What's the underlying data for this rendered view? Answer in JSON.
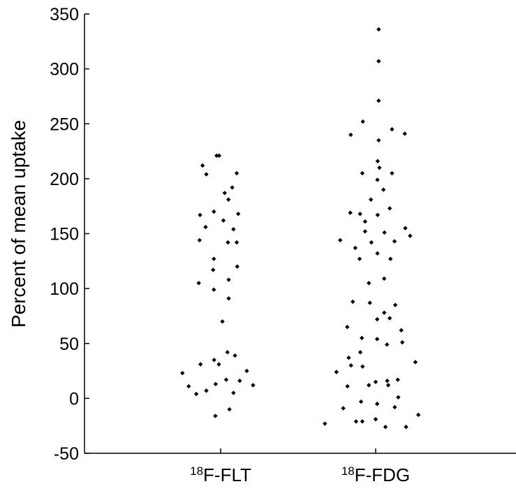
{
  "chart_data": {
    "type": "scatter",
    "title": "",
    "xlabel": "",
    "ylabel": "Percent of mean uptake",
    "ylim": [
      -50,
      350
    ],
    "yticks": [
      -50,
      0,
      50,
      100,
      150,
      200,
      250,
      300,
      350
    ],
    "grid": false,
    "categories": [
      {
        "sup": "18",
        "label": "F-FLT"
      },
      {
        "sup": "18",
        "label": "F-FDG"
      }
    ],
    "series": [
      {
        "category": 0,
        "points": [
          {
            "dx": -0.16,
            "y": 221
          },
          {
            "dx": -0.06,
            "y": 221
          },
          {
            "dx": -0.72,
            "y": 212
          },
          {
            "dx": -0.57,
            "y": 204
          },
          {
            "dx": 0.64,
            "y": 205
          },
          {
            "dx": 0.46,
            "y": 192
          },
          {
            "dx": 0.16,
            "y": 187
          },
          {
            "dx": 0.31,
            "y": 181
          },
          {
            "dx": -0.27,
            "y": 170
          },
          {
            "dx": -0.82,
            "y": 167
          },
          {
            "dx": 0.7,
            "y": 168
          },
          {
            "dx": 0.11,
            "y": 162
          },
          {
            "dx": -0.6,
            "y": 156
          },
          {
            "dx": 0.51,
            "y": 154
          },
          {
            "dx": -0.84,
            "y": 144
          },
          {
            "dx": 0.29,
            "y": 142
          },
          {
            "dx": 0.64,
            "y": 142
          },
          {
            "dx": -0.27,
            "y": 127
          },
          {
            "dx": 0.66,
            "y": 120
          },
          {
            "dx": -0.3,
            "y": 117
          },
          {
            "dx": 0.32,
            "y": 108
          },
          {
            "dx": -0.87,
            "y": 105
          },
          {
            "dx": -0.27,
            "y": 99
          },
          {
            "dx": 0.32,
            "y": 91
          },
          {
            "dx": 0.07,
            "y": 70
          },
          {
            "dx": 0.27,
            "y": 42
          },
          {
            "dx": 0.57,
            "y": 39
          },
          {
            "dx": -0.26,
            "y": 35
          },
          {
            "dx": -0.8,
            "y": 31
          },
          {
            "dx": -0.07,
            "y": 31
          },
          {
            "dx": 1.04,
            "y": 25
          },
          {
            "dx": -1.52,
            "y": 23
          },
          {
            "dx": 0.76,
            "y": 16
          },
          {
            "dx": 0.22,
            "y": 17
          },
          {
            "dx": -0.2,
            "y": 13
          },
          {
            "dx": -1.27,
            "y": 11
          },
          {
            "dx": 1.29,
            "y": 12
          },
          {
            "dx": -0.57,
            "y": 7
          },
          {
            "dx": 0.51,
            "y": 5
          },
          {
            "dx": -0.97,
            "y": 4
          },
          {
            "dx": 0.35,
            "y": -10
          },
          {
            "dx": -0.21,
            "y": -16
          }
        ]
      },
      {
        "category": 1,
        "points": [
          {
            "dx": 0.12,
            "y": 336
          },
          {
            "dx": 0.12,
            "y": 307
          },
          {
            "dx": 0.12,
            "y": 271
          },
          {
            "dx": -0.51,
            "y": 252
          },
          {
            "dx": 0.65,
            "y": 245
          },
          {
            "dx": -0.99,
            "y": 240
          },
          {
            "dx": 1.16,
            "y": 241
          },
          {
            "dx": 0.12,
            "y": 235
          },
          {
            "dx": 0.08,
            "y": 216
          },
          {
            "dx": 0.15,
            "y": 210
          },
          {
            "dx": -0.53,
            "y": 205
          },
          {
            "dx": 0.65,
            "y": 205
          },
          {
            "dx": 0.07,
            "y": 199
          },
          {
            "dx": 0.31,
            "y": 190
          },
          {
            "dx": -0.19,
            "y": 181
          },
          {
            "dx": 0.56,
            "y": 173
          },
          {
            "dx": -1.01,
            "y": 169
          },
          {
            "dx": -0.62,
            "y": 168
          },
          {
            "dx": 0.08,
            "y": 167
          },
          {
            "dx": -0.42,
            "y": 161
          },
          {
            "dx": 1.18,
            "y": 155
          },
          {
            "dx": -0.42,
            "y": 152
          },
          {
            "dx": 0.35,
            "y": 151
          },
          {
            "dx": 1.37,
            "y": 148
          },
          {
            "dx": -1.41,
            "y": 144
          },
          {
            "dx": -0.17,
            "y": 142
          },
          {
            "dx": 0.75,
            "y": 143
          },
          {
            "dx": -0.81,
            "y": 137
          },
          {
            "dx": 0.07,
            "y": 132
          },
          {
            "dx": -0.64,
            "y": 127
          },
          {
            "dx": 0.59,
            "y": 127
          },
          {
            "dx": 0.34,
            "y": 109
          },
          {
            "dx": -0.27,
            "y": 105
          },
          {
            "dx": -0.91,
            "y": 88
          },
          {
            "dx": -0.23,
            "y": 87
          },
          {
            "dx": 0.78,
            "y": 85
          },
          {
            "dx": 0.34,
            "y": 78
          },
          {
            "dx": 0.06,
            "y": 72
          },
          {
            "dx": 0.56,
            "y": 73
          },
          {
            "dx": -1.13,
            "y": 65
          },
          {
            "dx": 1.02,
            "y": 62
          },
          {
            "dx": -0.55,
            "y": 55
          },
          {
            "dx": 0.06,
            "y": 54
          },
          {
            "dx": 1.06,
            "y": 51
          },
          {
            "dx": 0.45,
            "y": 49
          },
          {
            "dx": -0.61,
            "y": 42
          },
          {
            "dx": -1.07,
            "y": 37
          },
          {
            "dx": 1.58,
            "y": 33
          },
          {
            "dx": -0.98,
            "y": 30
          },
          {
            "dx": -0.52,
            "y": 29
          },
          {
            "dx": -1.56,
            "y": 24
          },
          {
            "dx": 0.88,
            "y": 17
          },
          {
            "dx": 0.0,
            "y": 15
          },
          {
            "dx": 0.46,
            "y": 16
          },
          {
            "dx": -0.27,
            "y": 12
          },
          {
            "dx": -1.12,
            "y": 11
          },
          {
            "dx": 0.5,
            "y": 12
          },
          {
            "dx": 0.9,
            "y": 1
          },
          {
            "dx": -0.58,
            "y": -3
          },
          {
            "dx": 0.06,
            "y": -5
          },
          {
            "dx": 0.76,
            "y": -8
          },
          {
            "dx": -1.29,
            "y": -9
          },
          {
            "dx": 1.7,
            "y": -15
          },
          {
            "dx": -0.78,
            "y": -21
          },
          {
            "dx": -0.53,
            "y": -21
          },
          {
            "dx": 0.0,
            "y": -19
          },
          {
            "dx": -2.02,
            "y": -23
          },
          {
            "dx": 0.39,
            "y": -26
          },
          {
            "dx": 1.21,
            "y": -26
          }
        ]
      }
    ]
  }
}
